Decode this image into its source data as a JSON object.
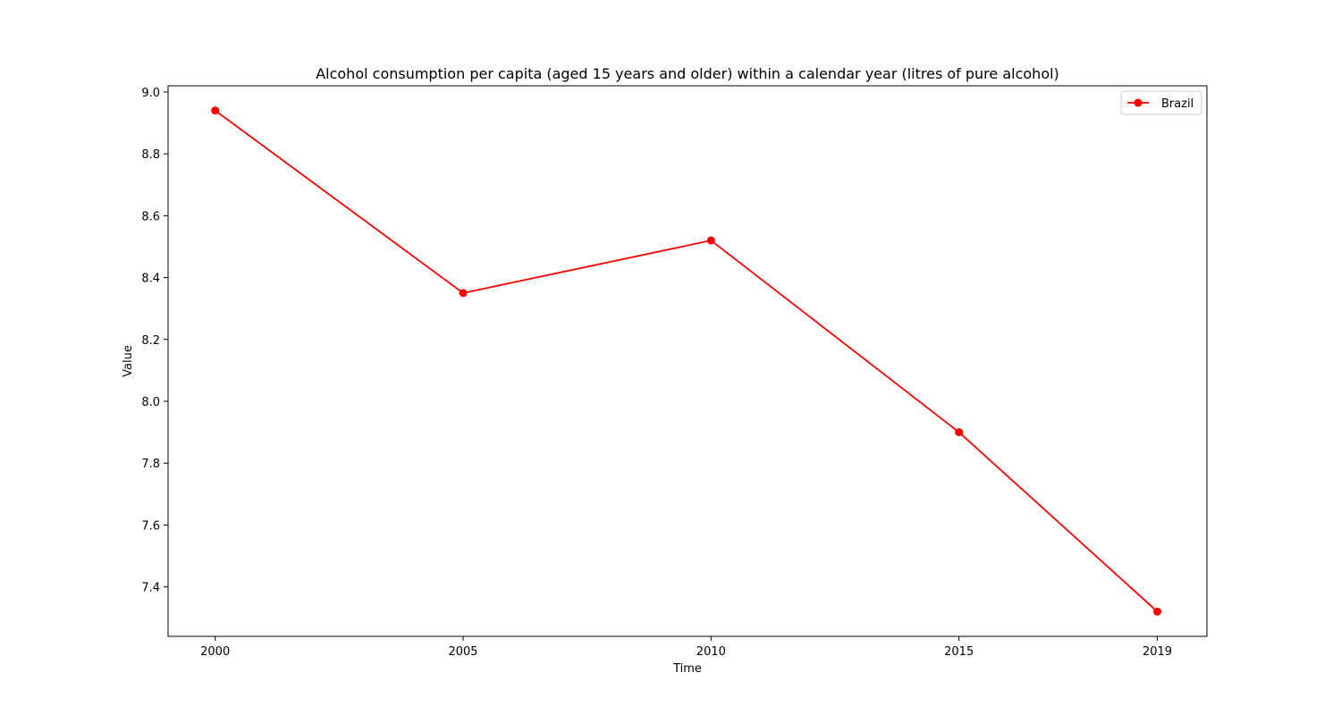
{
  "chart_data": {
    "type": "line",
    "title": "Alcohol consumption per capita (aged 15 years and older) within a calendar year (litres of pure alcohol)",
    "xlabel": "Time",
    "ylabel": "Value",
    "x": [
      2000,
      2005,
      2010,
      2015,
      2019
    ],
    "x_ticks": [
      "2000",
      "2005",
      "2010",
      "2015",
      "2019"
    ],
    "y_ticks": [
      "7.4",
      "7.6",
      "7.8",
      "8.0",
      "8.2",
      "8.4",
      "8.6",
      "8.8",
      "9.0"
    ],
    "xlim": [
      1999.05,
      2020.0
    ],
    "ylim": [
      7.24,
      9.02
    ],
    "grid": false,
    "legend_position": "top-right",
    "series": [
      {
        "name": "Brazil",
        "color": "#ff0000",
        "marker": "circle",
        "values": [
          8.94,
          8.35,
          8.52,
          7.9,
          7.32
        ]
      }
    ]
  }
}
